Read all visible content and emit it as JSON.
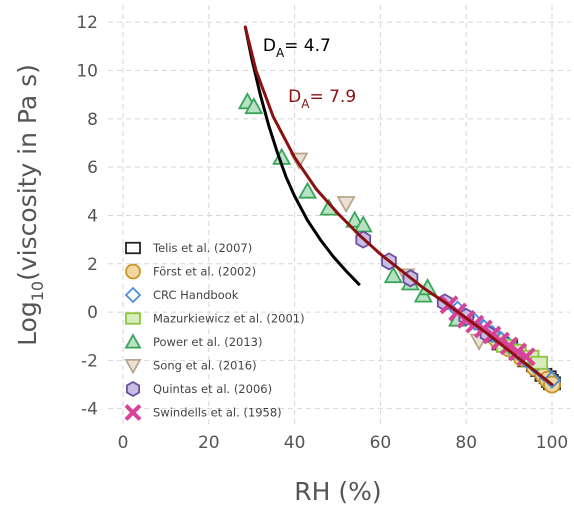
{
  "chart_data": {
    "type": "scatter",
    "xlabel": "RH (%)",
    "ylabel_main": "Log",
    "ylabel_sub": "10",
    "ylabel_rest": "(viscosity in Pa s)",
    "xlim": [
      0,
      100
    ],
    "ylim": [
      -4.8,
      12.3
    ],
    "x_ticks": [
      0,
      20,
      40,
      60,
      80,
      100
    ],
    "y_ticks": [
      -4,
      -2,
      0,
      2,
      4,
      6,
      8,
      10,
      12
    ],
    "grid": true,
    "legend_position": "lower-left",
    "annotations": [
      {
        "id": "da47",
        "prefix": "D",
        "sub": "A",
        "text": "= 4.7",
        "color": "#000000",
        "x": 32.6,
        "y": 10.8
      },
      {
        "id": "da79",
        "prefix": "D",
        "sub": "A",
        "text": "= 7.9",
        "color": "#8b1010",
        "x": 38.5,
        "y": 8.7
      }
    ],
    "curves": [
      {
        "id": "fit-da-4-7",
        "color": "#000000",
        "x": [
          28.5,
          30,
          32,
          34,
          36,
          38,
          40,
          43,
          46,
          49,
          52,
          55
        ],
        "y": [
          11.8,
          10.5,
          9.0,
          7.7,
          6.6,
          5.6,
          4.8,
          3.8,
          3.0,
          2.3,
          1.7,
          1.15
        ]
      },
      {
        "id": "fit-da-7-9",
        "color": "#8b1010",
        "x": [
          28.5,
          31,
          35,
          40,
          45,
          50,
          55,
          60,
          65,
          70,
          75,
          80,
          85,
          90,
          95,
          100
        ],
        "y": [
          11.8,
          10.0,
          8.1,
          6.4,
          5.1,
          4.1,
          3.2,
          2.4,
          1.7,
          1.0,
          0.4,
          -0.25,
          -0.9,
          -1.6,
          -2.3,
          -3.0
        ]
      }
    ],
    "series": [
      {
        "name": "Telis et al. (2007)",
        "marker": "square",
        "stroke": "#222222",
        "fill": "none",
        "x": [
          88,
          90,
          92,
          94,
          96,
          97,
          98,
          99,
          99.5,
          100
        ],
        "y": [
          -1.3,
          -1.4,
          -1.7,
          -2.0,
          -2.2,
          -2.4,
          -2.6,
          -2.7,
          -2.85,
          -2.95
        ]
      },
      {
        "name": "Först et al. (2002)",
        "marker": "circle",
        "stroke": "#c9962a",
        "fill": "#f2d7a0",
        "x": [
          87,
          90,
          93,
          96,
          98,
          99,
          100
        ],
        "y": [
          -1.1,
          -1.5,
          -1.9,
          -2.3,
          -2.6,
          -2.8,
          -3.0
        ]
      },
      {
        "name": "CRC Handbook",
        "marker": "diamond",
        "stroke": "#4a8fd8",
        "fill": "none",
        "x": [
          78,
          80,
          82,
          84,
          86,
          88,
          90,
          92,
          94,
          96,
          98,
          100
        ],
        "y": [
          0.1,
          -0.2,
          -0.4,
          -0.65,
          -0.9,
          -1.15,
          -1.4,
          -1.65,
          -1.95,
          -2.2,
          -2.5,
          -2.8
        ]
      },
      {
        "name": "Mazurkiewicz et al. (2001)",
        "marker": "square",
        "stroke": "#8cc63e",
        "fill": "#d8edbe",
        "x": [
          89,
          92,
          95,
          97
        ],
        "y": [
          -1.4,
          -1.6,
          -1.85,
          -2.1
        ]
      },
      {
        "name": "Power et al. (2013)",
        "marker": "triangle",
        "stroke": "#3aa55a",
        "fill": "#b7e2c3",
        "x": [
          29,
          30.5,
          37,
          43,
          48,
          54,
          56,
          63,
          67,
          70,
          71,
          78
        ],
        "y": [
          8.7,
          8.5,
          6.4,
          5.0,
          4.3,
          3.8,
          3.6,
          1.5,
          1.2,
          0.7,
          1.0,
          -0.3
        ]
      },
      {
        "name": "Song et al. (2016)",
        "marker": "triangle-down",
        "stroke": "#b9a48c",
        "fill": "#eae2d7",
        "x": [
          41,
          52,
          66,
          83
        ],
        "y": [
          6.3,
          4.5,
          1.5,
          -1.2
        ]
      },
      {
        "name": "Quintas et al. (2006)",
        "marker": "hexagon",
        "stroke": "#6a4fa0",
        "fill": "#c9bde4",
        "x": [
          56,
          62,
          67,
          75,
          80,
          85
        ],
        "y": [
          3.0,
          2.1,
          1.4,
          0.4,
          -0.2,
          -0.9
        ]
      },
      {
        "name": "Swindells et al. (1958)",
        "marker": "cross",
        "stroke": "#d8429a",
        "fill": "#f4b4d6",
        "x": [
          76,
          78,
          80,
          82,
          84,
          86,
          88,
          90,
          92,
          94
        ],
        "y": [
          0.3,
          0.0,
          -0.3,
          -0.5,
          -0.7,
          -0.95,
          -1.2,
          -1.4,
          -1.65,
          -1.85
        ]
      }
    ]
  }
}
